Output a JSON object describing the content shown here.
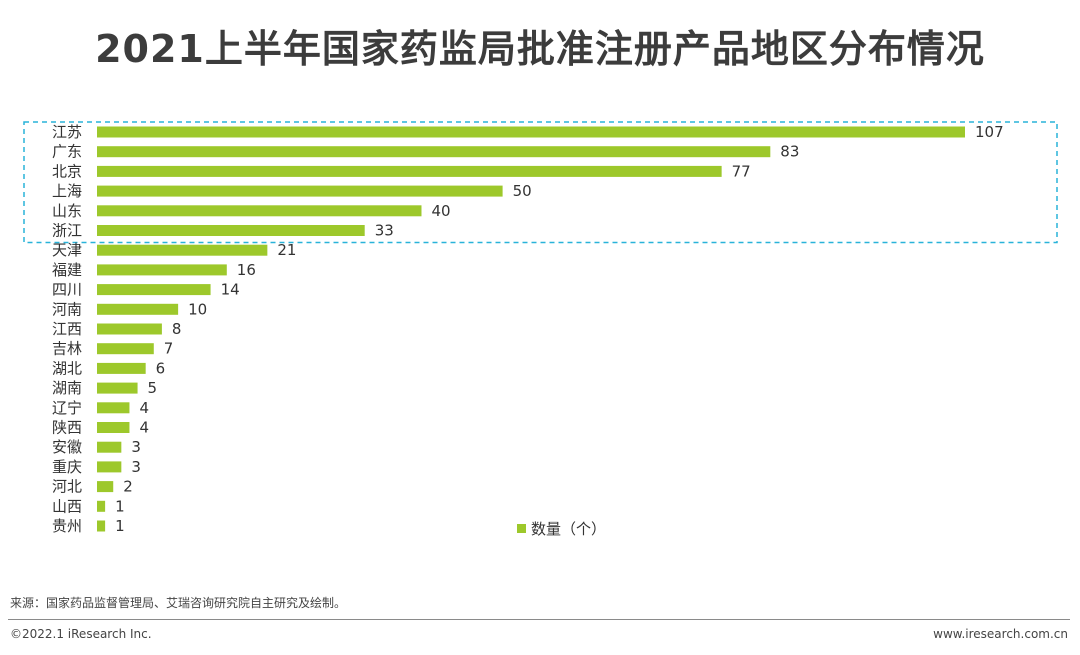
{
  "title": "2021上半年国家药监局批准注册产品地区分布情况",
  "chart_data": {
    "type": "bar",
    "orientation": "horizontal",
    "categories": [
      "江苏",
      "广东",
      "北京",
      "上海",
      "山东",
      "浙江",
      "天津",
      "福建",
      "四川",
      "河南",
      "江西",
      "吉林",
      "湖北",
      "湖南",
      "辽宁",
      "陕西",
      "安徽",
      "重庆",
      "河北",
      "山西",
      "贵州"
    ],
    "series": [
      {
        "name": "数量（个）",
        "values": [
          107,
          83,
          77,
          50,
          40,
          33,
          21,
          16,
          14,
          10,
          8,
          7,
          6,
          5,
          4,
          4,
          3,
          3,
          2,
          1,
          1
        ]
      }
    ],
    "xlim": [
      0,
      107
    ],
    "grid": false,
    "legend_position": "bottom-center",
    "highlight": {
      "categories": [
        "江苏",
        "广东",
        "北京",
        "上海",
        "山东",
        "浙江"
      ],
      "style": "dashed-box"
    }
  },
  "colors": {
    "bar": "#9dc82b",
    "highlight_box": "#29b3d9",
    "title": "#3c3c3c"
  },
  "source": "来源：国家药品监督管理局、艾瑞咨询研究院自主研究及绘制。",
  "footer": {
    "copyright": "©2022.1 iResearch Inc.",
    "website": "www.iresearch.com.cn"
  }
}
